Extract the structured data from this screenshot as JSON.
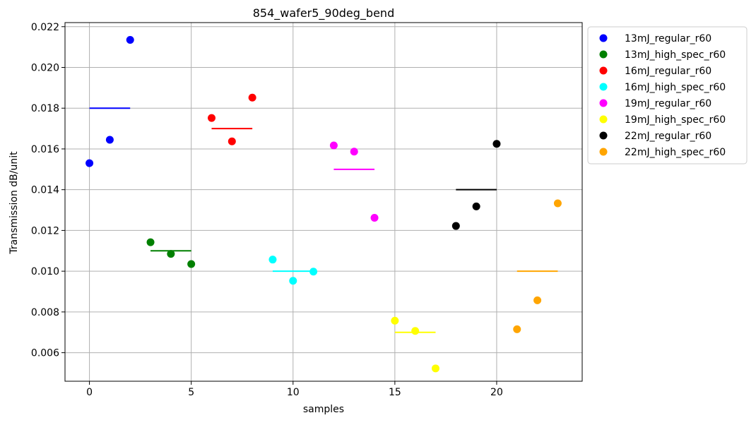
{
  "chart_data": {
    "type": "scatter",
    "title": "854_wafer5_90deg_bend",
    "xlabel": "samples",
    "ylabel": "Transmission dB/unit",
    "xlim": [
      -1.2,
      24.2
    ],
    "ylim": [
      0.0046,
      0.0222
    ],
    "xticks": [
      0,
      5,
      10,
      15,
      20
    ],
    "xtick_labels": [
      "0",
      "5",
      "10",
      "15",
      "20"
    ],
    "yticks": [
      0.006,
      0.008,
      0.01,
      0.012,
      0.014,
      0.016,
      0.018,
      0.02,
      0.022
    ],
    "ytick_labels": [
      "0.006",
      "0.008",
      "0.010",
      "0.012",
      "0.014",
      "0.016",
      "0.018",
      "0.020",
      "0.022"
    ],
    "grid": true,
    "legend_position": "outside-right",
    "series": [
      {
        "name": "13mJ_regular_r60",
        "color": "#0000ff",
        "x": [
          0,
          1,
          2
        ],
        "y": [
          0.0153,
          0.01645,
          0.02135
        ],
        "mean": 0.018
      },
      {
        "name": "13mJ_high_spec_r60",
        "color": "#008000",
        "x": [
          3,
          4,
          5
        ],
        "y": [
          0.01142,
          0.01085,
          0.01035
        ],
        "mean": 0.011
      },
      {
        "name": "16mJ_regular_r60",
        "color": "#ff0000",
        "x": [
          6,
          7,
          8
        ],
        "y": [
          0.01752,
          0.01637,
          0.01852
        ],
        "mean": 0.017
      },
      {
        "name": "16mJ_high_spec_r60",
        "color": "#00ffff",
        "x": [
          9,
          10,
          11
        ],
        "y": [
          0.01057,
          0.00953,
          0.00998
        ],
        "mean": 0.01
      },
      {
        "name": "19mJ_regular_r60",
        "color": "#ff00ff",
        "x": [
          12,
          13,
          14
        ],
        "y": [
          0.01617,
          0.01587,
          0.01262
        ],
        "mean": 0.015
      },
      {
        "name": "19mJ_high_spec_r60",
        "color": "#ffff00",
        "x": [
          15,
          16,
          17
        ],
        "y": [
          0.00757,
          0.00707,
          0.00523
        ],
        "mean": 0.007
      },
      {
        "name": "22mJ_regular_r60",
        "color": "#000000",
        "x": [
          18,
          19,
          20
        ],
        "y": [
          0.01222,
          0.01318,
          0.01625
        ],
        "mean": 0.014
      },
      {
        "name": "22mJ_high_spec_r60",
        "color": "#ffa500",
        "x": [
          21,
          22,
          23
        ],
        "y": [
          0.00715,
          0.00857,
          0.01333
        ],
        "mean": 0.01
      }
    ]
  }
}
